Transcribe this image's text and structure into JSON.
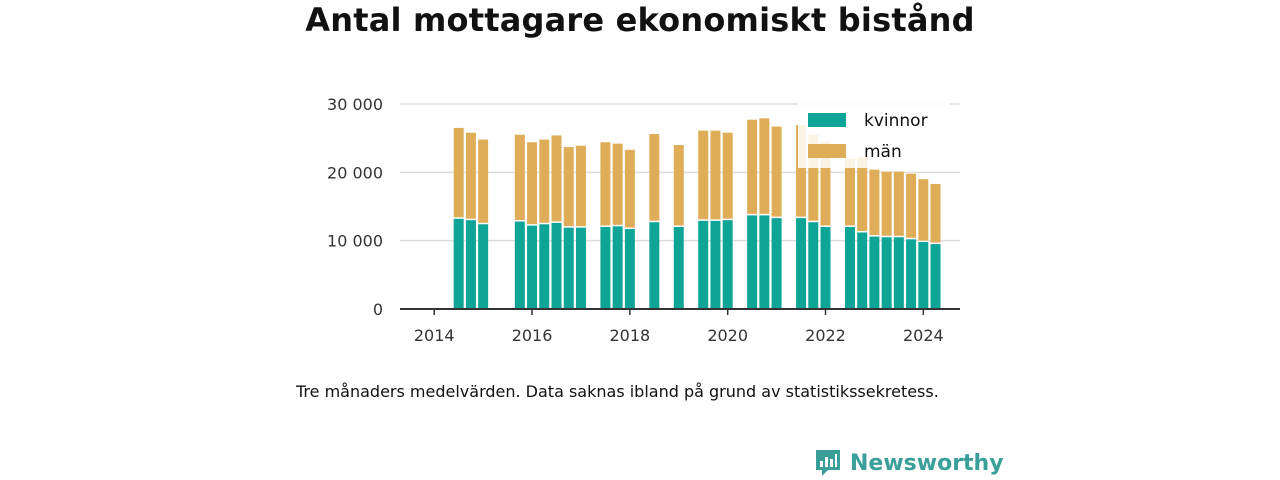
{
  "title": "Antal mottagare ekonomiskt bistånd",
  "caption": "Tre månaders medelvärden. Data saknas ibland på grund av statistikssekretess.",
  "brand": {
    "name": "Newsworthy",
    "icon": "newsworthy-logo-icon"
  },
  "colors": {
    "kvinnor": "#0fa596",
    "man": "#dfad58",
    "axis": "#333333",
    "grid": "#dddddd"
  },
  "chart_data": {
    "type": "bar",
    "stacked": true,
    "title": "Antal mottagare ekonomiskt bistånd",
    "xlim": [
      2013.3,
      2024.75
    ],
    "ylim": [
      0,
      30000
    ],
    "x_ticks": [
      "2014",
      "2016",
      "2018",
      "2020",
      "2022",
      "2024"
    ],
    "y_ticks": [
      "0",
      "10 000",
      "20 000",
      "30 000"
    ],
    "grid": true,
    "legend_position": "top-right",
    "x": [
      2014.5,
      2014.75,
      2015.0,
      2015.75,
      2016.0,
      2016.25,
      2016.5,
      2016.75,
      2017.0,
      2017.5,
      2017.75,
      2018.0,
      2018.5,
      2019.0,
      2019.5,
      2019.75,
      2020.0,
      2020.5,
      2020.75,
      2021.0,
      2021.5,
      2021.75,
      2022.0,
      2022.5,
      2022.75,
      2023.0,
      2023.25,
      2023.5,
      2023.75,
      2024.0,
      2024.25
    ],
    "series": [
      {
        "name": "kvinnor",
        "values": [
          13200,
          13000,
          12400,
          12800,
          12200,
          12400,
          12600,
          11900,
          11900,
          12000,
          12100,
          11700,
          12700,
          12000,
          12900,
          12900,
          13000,
          13700,
          13700,
          13300,
          13300,
          12700,
          12000,
          12000,
          11200,
          10600,
          10500,
          10500,
          10200,
          9800,
          9500
        ]
      },
      {
        "name": "män",
        "values": [
          13300,
          12800,
          12400,
          12700,
          12200,
          12400,
          12800,
          11800,
          12000,
          12400,
          12100,
          11600,
          12900,
          12000,
          13200,
          13200,
          12800,
          14000,
          14200,
          13400,
          13600,
          12800,
          12500,
          10000,
          11000,
          9800,
          9600,
          9600,
          9600,
          9200,
          8800
        ]
      }
    ]
  }
}
